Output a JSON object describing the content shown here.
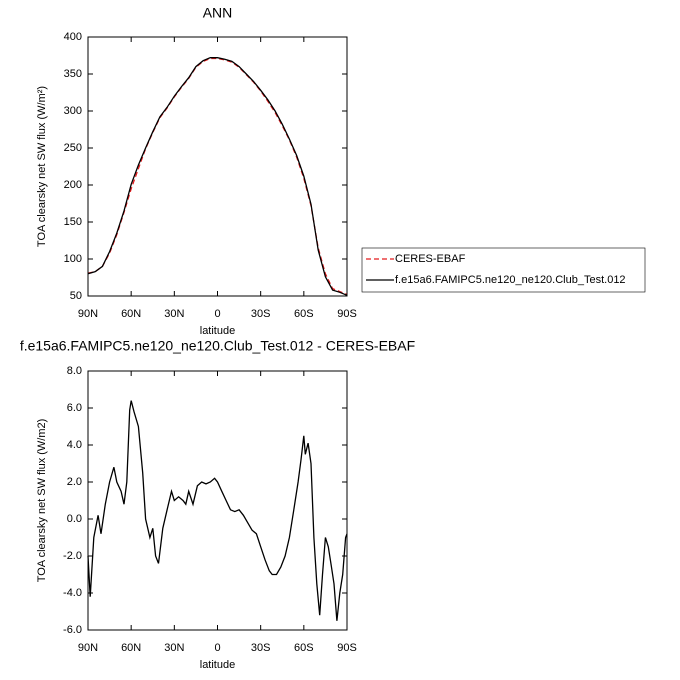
{
  "chart_data": [
    {
      "type": "line",
      "title": "ANN",
      "x_label": "latitude",
      "y_label": "TOA clearsky net SW flux (W/m²)",
      "x": [
        90,
        85,
        80,
        75,
        70,
        65,
        60,
        55,
        50,
        45,
        40,
        35,
        30,
        25,
        20,
        15,
        10,
        5,
        0,
        -5,
        -10,
        -15,
        -20,
        -25,
        -30,
        -35,
        -40,
        -45,
        -50,
        -55,
        -60,
        -65,
        -70,
        -75,
        -80,
        -85,
        -90
      ],
      "series": [
        {
          "name": "CERES-EBAF",
          "color": "#e41a1c",
          "dash": true,
          "values": [
            81,
            83,
            90,
            108,
            133,
            163,
            195,
            222,
            249,
            271,
            291,
            304,
            319,
            332,
            344,
            359,
            367,
            371,
            371,
            369,
            366,
            359,
            349,
            339,
            327,
            313,
            298,
            280,
            261,
            238,
            209,
            172,
            115,
            80,
            60,
            56,
            52
          ]
        },
        {
          "name": "f.e15a6.FAMIPC5.ne120_ne120.Club_Test.012",
          "color": "#000000",
          "dash": false,
          "values": [
            80,
            83,
            90,
            110,
            135,
            165,
            201,
            227,
            250,
            272,
            292,
            305,
            320,
            333,
            345,
            360,
            368,
            372,
            372,
            370,
            367,
            360,
            350,
            340,
            328,
            315,
            300,
            282,
            262,
            240,
            212,
            174,
            112,
            76,
            58,
            55,
            51
          ]
        }
      ],
      "xlim": [
        90,
        -90
      ],
      "xticks": [
        {
          "value": 90,
          "label": "90N"
        },
        {
          "value": 60,
          "label": "60N"
        },
        {
          "value": 30,
          "label": "30N"
        },
        0,
        {
          "value": -30,
          "label": "30S"
        },
        {
          "value": -60,
          "label": "60S"
        },
        {
          "value": -90,
          "label": "90S"
        }
      ],
      "ylim": [
        50,
        400
      ],
      "yticks": [
        50,
        100,
        150,
        200,
        250,
        300,
        350,
        400
      ],
      "legend": "outside right"
    },
    {
      "type": "line",
      "title": "f.e15a6.FAMIPC5.ne120_ne120.Club_Test.012 - CERES-EBAF",
      "x_label": "latitude",
      "y_label": "TOA clearsky net SW flux (W/m2)",
      "x": [
        90,
        88.5,
        86,
        83,
        81,
        78,
        75,
        72,
        70,
        67,
        65,
        63,
        61,
        60,
        58,
        55,
        52,
        50,
        47,
        45,
        43,
        41,
        38,
        35,
        32,
        30,
        27,
        24,
        22,
        20,
        17,
        14,
        11,
        8,
        5,
        2,
        0,
        -3,
        -6,
        -9,
        -12,
        -15,
        -18,
        -21,
        -24,
        -27,
        -30,
        -33,
        -36,
        -38,
        -41,
        -44,
        -47,
        -50,
        -53,
        -56,
        -58,
        -60,
        -61,
        -63,
        -65,
        -67,
        -69,
        -71,
        -73,
        -75,
        -77,
        -79,
        -81,
        -83,
        -85,
        -87,
        -89,
        -90
      ],
      "values": [
        -2.0,
        -4.2,
        -1.0,
        0.2,
        -0.8,
        0.8,
        2.0,
        2.8,
        2.0,
        1.5,
        0.8,
        2.0,
        5.9,
        6.4,
        5.8,
        5.0,
        2.5,
        0.0,
        -1.0,
        -0.5,
        -2.0,
        -2.4,
        -0.5,
        0.5,
        1.5,
        1.0,
        1.2,
        1.0,
        0.8,
        1.5,
        0.8,
        1.8,
        2.0,
        1.9,
        2.0,
        2.2,
        2.0,
        1.5,
        1.0,
        0.5,
        0.4,
        0.5,
        0.2,
        -0.2,
        -0.6,
        -0.8,
        -1.5,
        -2.2,
        -2.8,
        -3.0,
        -3.0,
        -2.6,
        -2.0,
        -1.0,
        0.5,
        2.0,
        3.2,
        4.5,
        3.5,
        4.1,
        3.0,
        -1.0,
        -3.5,
        -5.2,
        -3.0,
        -1.0,
        -1.5,
        -2.5,
        -3.5,
        -5.5,
        -4.0,
        -3.0,
        -1.0,
        -0.8
      ],
      "color": "#000000",
      "xlim": [
        90,
        -90
      ],
      "xticks": [
        {
          "value": 90,
          "label": "90N"
        },
        {
          "value": 60,
          "label": "60N"
        },
        {
          "value": 30,
          "label": "30N"
        },
        0,
        {
          "value": -30,
          "label": "30S"
        },
        {
          "value": -60,
          "label": "60S"
        },
        {
          "value": -90,
          "label": "90S"
        }
      ],
      "ylim": [
        -6,
        8
      ],
      "yticks": [
        {
          "value": -6,
          "label": "-6.0"
        },
        {
          "value": -4,
          "label": "-4.0"
        },
        {
          "value": -2,
          "label": "-2.0"
        },
        {
          "value": 0,
          "label": "0.0"
        },
        {
          "value": 2,
          "label": "2.0"
        },
        {
          "value": 4,
          "label": "4.0"
        },
        {
          "value": 6,
          "label": "6.0"
        },
        {
          "value": 8,
          "label": "8.0"
        }
      ]
    }
  ]
}
